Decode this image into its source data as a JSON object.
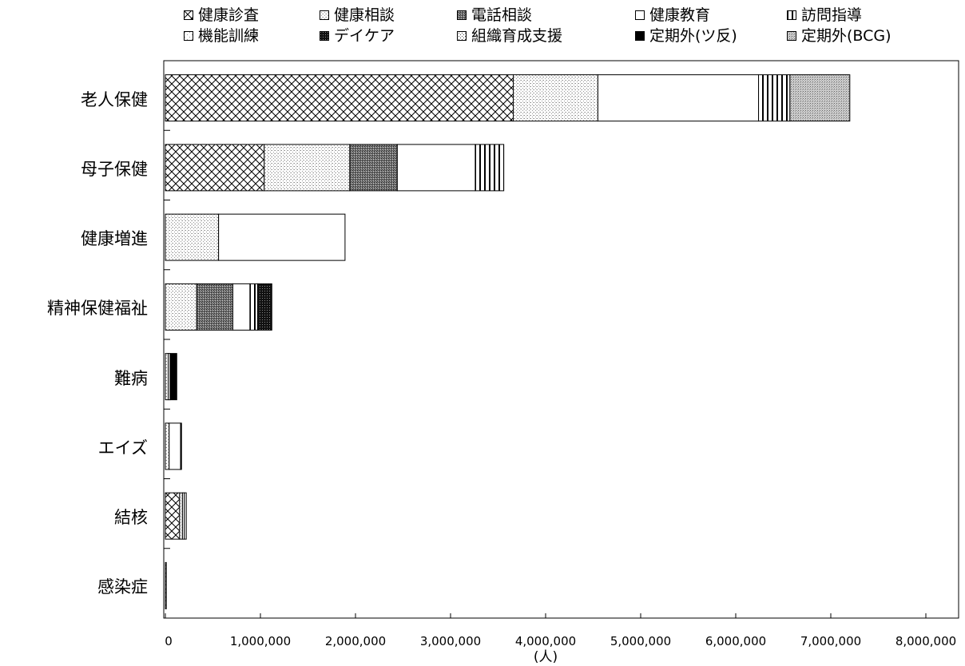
{
  "chart_data": {
    "type": "bar",
    "orientation": "horizontal",
    "stacked": true,
    "categories": [
      "老人保健",
      "母子保健",
      "健康増進",
      "精神保健福祉",
      "難病",
      "エイズ",
      "結核",
      "感染症"
    ],
    "series": [
      {
        "name": "健康診査",
        "pattern": "crosshatch",
        "values": [
          3660000,
          1040000,
          0,
          0,
          0,
          0,
          150000,
          10000
        ]
      },
      {
        "name": "健康相談",
        "pattern": "fine-dots",
        "values": [
          890000,
          900000,
          560000,
          330000,
          30000,
          40000,
          30000,
          0
        ]
      },
      {
        "name": "電話相談",
        "pattern": "dark-dots",
        "values": [
          0,
          500000,
          0,
          380000,
          0,
          0,
          0,
          0
        ]
      },
      {
        "name": "健康教育",
        "pattern": "white",
        "values": [
          1690000,
          820000,
          1330000,
          180000,
          20000,
          120000,
          20000,
          0
        ]
      },
      {
        "name": "訪問指導",
        "pattern": "vertical-lines",
        "values": [
          330000,
          300000,
          0,
          80000,
          0,
          0,
          20000,
          0
        ]
      },
      {
        "name": "機能訓練",
        "pattern": "light-dots",
        "values": [
          0,
          0,
          0,
          0,
          0,
          0,
          0,
          0
        ]
      },
      {
        "name": "デイケア",
        "pattern": "black-dots",
        "values": [
          0,
          0,
          0,
          150000,
          0,
          0,
          0,
          0
        ]
      },
      {
        "name": "組織育成支援",
        "pattern": "dots",
        "values": [
          0,
          0,
          0,
          0,
          0,
          0,
          0,
          0
        ]
      },
      {
        "name": "定期外(ツ反)",
        "pattern": "black",
        "values": [
          0,
          0,
          0,
          0,
          70000,
          10000,
          0,
          0
        ]
      },
      {
        "name": "定期外(BCG)",
        "pattern": "medium-dots",
        "values": [
          630000,
          0,
          0,
          0,
          0,
          0,
          0,
          0
        ]
      }
    ],
    "xlim": [
      0,
      8000000
    ],
    "xticks": [
      "0",
      "1,000,000",
      "2,000,000",
      "3,000,000",
      "4,000,000",
      "5,000,000",
      "6,000,000",
      "7,000,000",
      "8,000,000"
    ],
    "xlabel": "(人)",
    "legend_position": "top",
    "grid": false
  }
}
